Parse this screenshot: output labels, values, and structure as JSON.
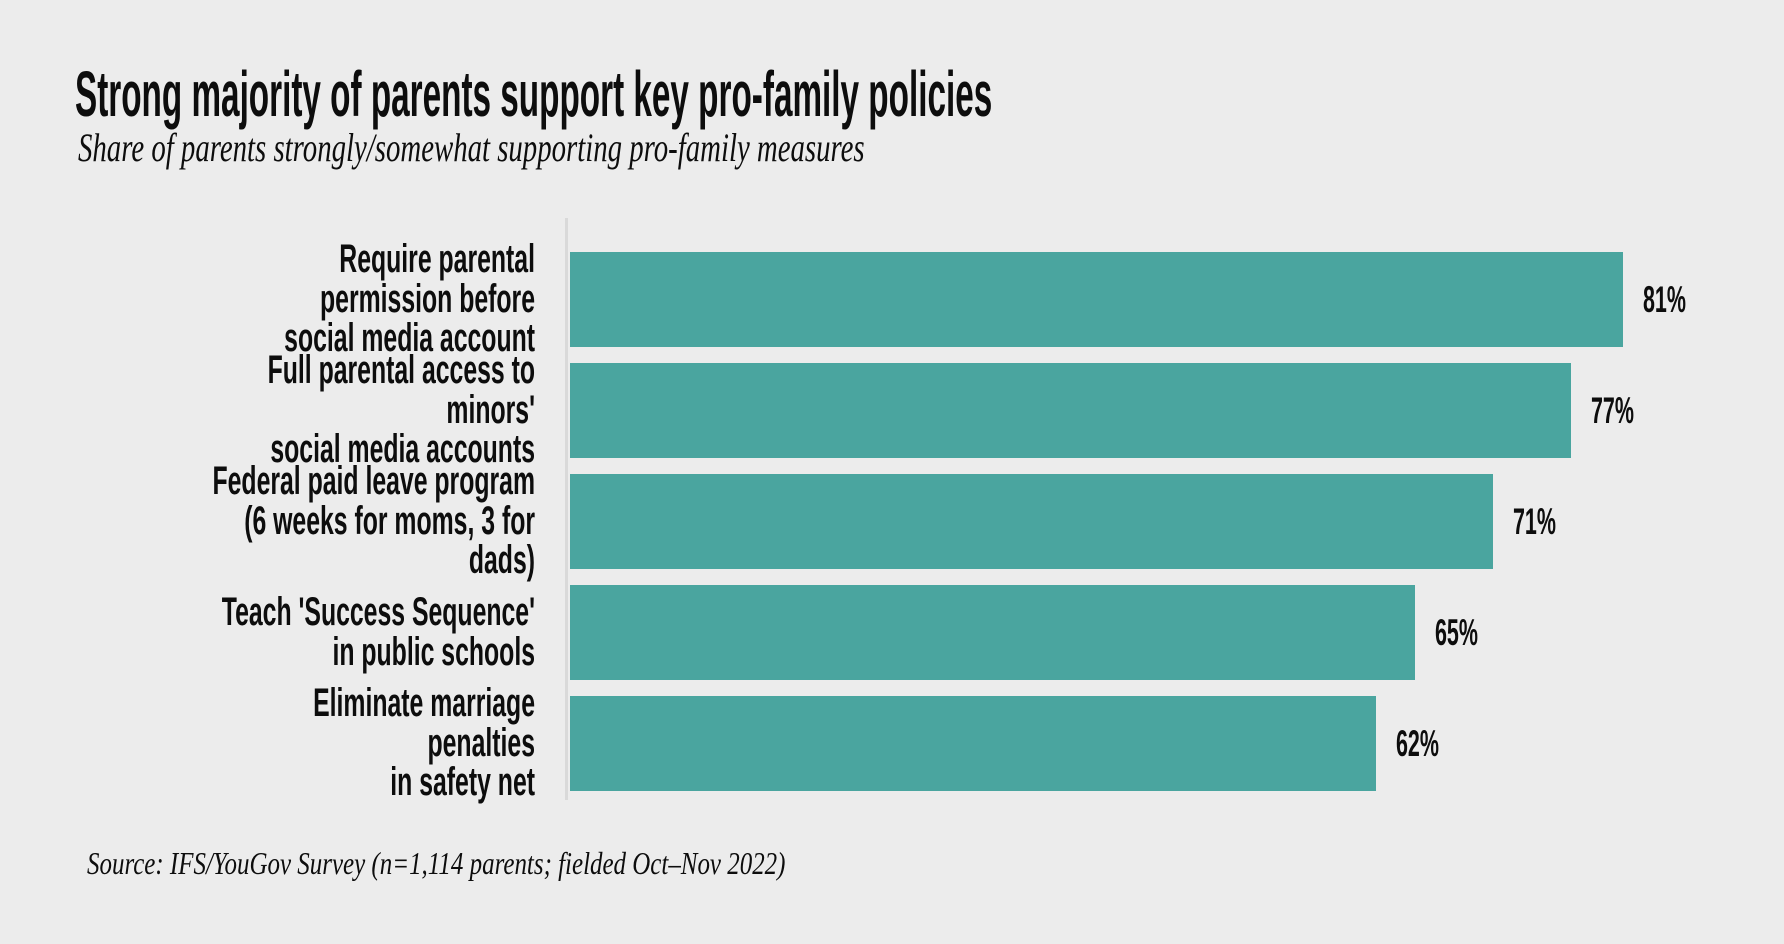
{
  "header": {
    "title": "Strong majority of parents support key pro-family policies",
    "subtitle": "Share of parents strongly/somewhat supporting pro-family measures"
  },
  "chart_data": {
    "type": "bar",
    "orientation": "horizontal",
    "title": "Strong majority of parents support key pro-family policies",
    "subtitle": "Share of parents strongly/somewhat supporting pro-family measures",
    "xlim": [
      0,
      100
    ],
    "unit": "%",
    "grid": false,
    "legend": "none",
    "bar_color": "#4aa59f",
    "axis_line_color": "#d9d9d9",
    "background_color": "#ececec",
    "text_color": "#0d0d0d",
    "categories": [
      "Require parental permission before social media account",
      "Full parental access to minors' social media accounts",
      "Federal paid leave program (6 weeks for moms, 3 for dads)",
      "Teach 'Success Sequence' in public schools",
      "Eliminate marriage penalties in safety net"
    ],
    "values": [
      81,
      77,
      71,
      65,
      62
    ],
    "rows": [
      {
        "label_lines": [
          "Require parental permission before",
          "social media account"
        ],
        "value": 81,
        "value_label": "81%"
      },
      {
        "label_lines": [
          "Full parental access to minors'",
          "social media accounts"
        ],
        "value": 77,
        "value_label": "77%"
      },
      {
        "label_lines": [
          "Federal paid leave program",
          "(6 weeks for moms, 3 for dads)"
        ],
        "value": 71,
        "value_label": "71%"
      },
      {
        "label_lines": [
          "Teach 'Success Sequence'",
          "in public schools"
        ],
        "value": 65,
        "value_label": "65%"
      },
      {
        "label_lines": [
          "Eliminate marriage penalties",
          "in safety net"
        ],
        "value": 62,
        "value_label": "62%"
      }
    ]
  },
  "footer": {
    "source": "Source: IFS/YouGov Survey (n=1,114 parents; fielded Oct–Nov 2022)"
  }
}
